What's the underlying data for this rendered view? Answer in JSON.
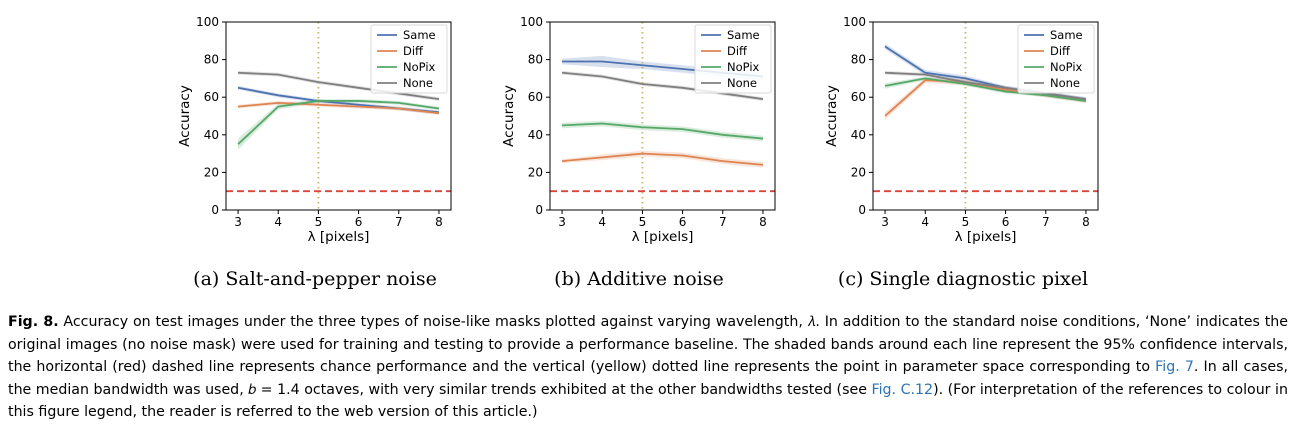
{
  "chart_data": [
    {
      "type": "line",
      "subcaption": "(a) Salt-and-pepper noise",
      "xlabel": "λ [pixels]",
      "ylabel": "Accuracy",
      "x": [
        3,
        4,
        5,
        6,
        7,
        8
      ],
      "xlim": [
        2.7,
        8.3
      ],
      "ylim": [
        0,
        100
      ],
      "xticks": [
        "3",
        "4",
        "5",
        "6",
        "7",
        "8"
      ],
      "yticks": [
        "0",
        "20",
        "40",
        "60",
        "80",
        "100"
      ],
      "chance_level": 10,
      "reference_x": 5,
      "legend_position": "top-right",
      "series": [
        {
          "name": "Same",
          "color": "#4c72b0",
          "values": [
            65,
            61,
            58,
            56,
            54,
            52
          ],
          "ci": [
            1,
            1,
            1,
            1,
            1,
            1
          ]
        },
        {
          "name": "Diff",
          "color": "#dd8452",
          "values": [
            55,
            57,
            56,
            55,
            54,
            51.5
          ],
          "ci": [
            1,
            1,
            1,
            1,
            1,
            1
          ]
        },
        {
          "name": "NoPix",
          "color": "#55a868",
          "values": [
            35,
            55,
            58,
            58,
            57,
            54
          ],
          "ci": [
            3,
            1.5,
            1,
            1,
            1,
            1
          ]
        },
        {
          "name": "None",
          "color": "#7f7f7f",
          "values": [
            73,
            72,
            68,
            65,
            62,
            59
          ],
          "ci": [
            1,
            1,
            1,
            1,
            1,
            1
          ]
        }
      ]
    },
    {
      "type": "line",
      "subcaption": "(b) Additive noise",
      "xlabel": "λ [pixels]",
      "ylabel": "Accuracy",
      "x": [
        3,
        4,
        5,
        6,
        7,
        8
      ],
      "xlim": [
        2.7,
        8.3
      ],
      "ylim": [
        0,
        100
      ],
      "xticks": [
        "3",
        "4",
        "5",
        "6",
        "7",
        "8"
      ],
      "yticks": [
        "0",
        "20",
        "40",
        "60",
        "80",
        "100"
      ],
      "chance_level": 10,
      "reference_x": 5,
      "legend_position": "top-right",
      "series": [
        {
          "name": "Same",
          "color": "#4c72b0",
          "values": [
            79,
            79,
            77,
            75,
            73,
            71
          ],
          "ci": [
            1.5,
            3,
            2,
            2,
            2,
            2
          ]
        },
        {
          "name": "Diff",
          "color": "#dd8452",
          "values": [
            26,
            28,
            30,
            29,
            26,
            24
          ],
          "ci": [
            1,
            1.5,
            1.5,
            1.5,
            1.5,
            1.5
          ]
        },
        {
          "name": "NoPix",
          "color": "#55a868",
          "values": [
            45,
            46,
            44,
            43,
            40,
            38
          ],
          "ci": [
            1.5,
            1.5,
            1.5,
            1.5,
            1.5,
            1.5
          ]
        },
        {
          "name": "None",
          "color": "#7f7f7f",
          "values": [
            73,
            71,
            67,
            65,
            62,
            59
          ],
          "ci": [
            1,
            1,
            1,
            1,
            1,
            1
          ]
        }
      ]
    },
    {
      "type": "line",
      "subcaption": "(c) Single diagnostic pixel",
      "xlabel": "λ [pixels]",
      "ylabel": "Accuracy",
      "x": [
        3,
        4,
        5,
        6,
        7,
        8
      ],
      "xlim": [
        2.7,
        8.3
      ],
      "ylim": [
        0,
        100
      ],
      "xticks": [
        "3",
        "4",
        "5",
        "6",
        "7",
        "8"
      ],
      "yticks": [
        "0",
        "20",
        "40",
        "60",
        "80",
        "100"
      ],
      "chance_level": 10,
      "reference_x": 5,
      "legend_position": "top-right",
      "series": [
        {
          "name": "Same",
          "color": "#4c72b0",
          "values": [
            87,
            73,
            70,
            65,
            62,
            59
          ],
          "ci": [
            1.5,
            1.5,
            1.5,
            1,
            1,
            1
          ]
        },
        {
          "name": "Diff",
          "color": "#dd8452",
          "values": [
            50,
            69,
            68,
            64,
            61,
            58
          ],
          "ci": [
            2,
            1.5,
            1.5,
            1,
            1,
            1
          ]
        },
        {
          "name": "NoPix",
          "color": "#55a868",
          "values": [
            66,
            70,
            67,
            63,
            61,
            58
          ],
          "ci": [
            1.5,
            1,
            1,
            1,
            1,
            1
          ]
        },
        {
          "name": "None",
          "color": "#7f7f7f",
          "values": [
            73,
            72,
            68,
            65,
            62,
            59
          ],
          "ci": [
            1,
            1,
            1,
            1,
            1,
            1
          ]
        }
      ]
    }
  ],
  "caption": {
    "label": "Fig. 8.",
    "text_1": " Accuracy on test images under the three types of noise-like masks plotted against varying wavelength, 𝜆. In addition to the standard noise conditions, ‘None’ indicates the original images (no noise mask) were used for training and testing to provide a performance baseline. The shaded bands around each line represent the 95% confidence intervals, the horizontal (red) dashed line represents chance performance and the vertical (yellow) dotted line represents the point in parameter space corresponding to ",
    "ref_1": "Fig. 7",
    "text_2": ". In all cases, the median bandwidth was used, 𝑏 = 1.4 octaves, with very similar trends exhibited at the other bandwidths tested (see ",
    "ref_2": "Fig. C.12",
    "text_3": "). (For interpretation of the references to colour in this figure legend, the reader is referred to the web version of this article.)"
  },
  "colors": {
    "chance_line": "#d9453a",
    "reference_line": "#c8b46a"
  }
}
